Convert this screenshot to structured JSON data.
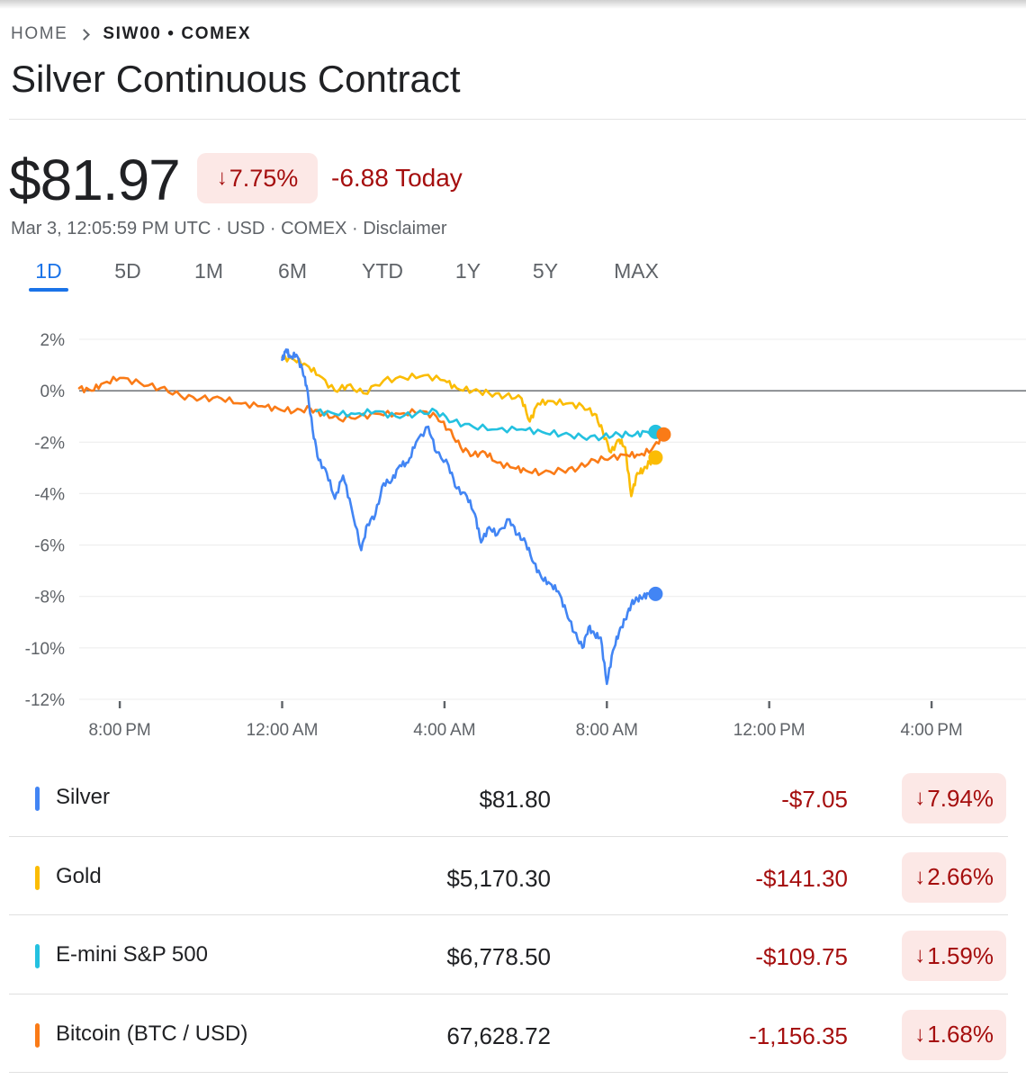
{
  "breadcrumb": {
    "home": "HOME",
    "current": "SIW00 • COMEX"
  },
  "title": "Silver Continuous Contract",
  "quote": {
    "price": "$81.97",
    "change_pct": "7.75%",
    "change_today": "-6.88 Today",
    "meta": "Mar 3, 12:05:59 PM UTC · USD · COMEX · Disclaimer"
  },
  "range_tabs": [
    {
      "label": "1D",
      "active": true
    },
    {
      "label": "5D",
      "active": false
    },
    {
      "label": "1M",
      "active": false
    },
    {
      "label": "6M",
      "active": false
    },
    {
      "label": "YTD",
      "active": false
    },
    {
      "label": "1Y",
      "active": false
    },
    {
      "label": "5Y",
      "active": false
    },
    {
      "label": "MAX",
      "active": false
    }
  ],
  "colors": {
    "silver": "#4285f4",
    "gold": "#fbbc04",
    "sp500": "#24c1e0",
    "bitcoin": "#fa7b17",
    "negative": "#a50e0e",
    "badge_bg": "#fce8e6",
    "active_tab": "#1a73e8"
  },
  "chart_data": {
    "type": "line",
    "ylim": [
      -12,
      2
    ],
    "y_ticks": [
      "2%",
      "0%",
      "-2%",
      "-4%",
      "-6%",
      "-8%",
      "-10%",
      "-12%"
    ],
    "x_ticks": [
      "8:00 PM",
      "12:00 AM",
      "4:00 AM",
      "8:00 AM",
      "12:00 PM",
      "4:00 PM"
    ],
    "x_unit": "hours since 7:00 PM",
    "xlim": [
      0,
      23.5
    ],
    "baseline": 0,
    "series": [
      {
        "name": "Silver",
        "color": "#4285f4",
        "x": [
          5.0,
          5.1,
          5.2,
          5.35,
          5.5,
          5.6,
          5.75,
          5.9,
          6.1,
          6.3,
          6.5,
          6.7,
          6.95,
          7.1,
          7.3,
          7.5,
          7.7,
          7.9,
          8.1,
          8.3,
          8.6,
          8.8,
          9.1,
          9.3,
          9.55,
          9.75,
          9.9,
          10.1,
          10.3,
          10.6,
          10.8,
          11.0,
          11.2,
          11.4,
          11.6,
          11.8,
          12.0,
          12.2,
          12.4,
          12.55,
          12.7,
          12.85,
          13.0,
          13.15,
          13.3,
          13.45,
          13.6,
          13.75,
          13.9,
          14.05,
          14.2
        ],
        "y": [
          1.2,
          1.6,
          1.3,
          1.4,
          0.8,
          0.2,
          -1.5,
          -2.7,
          -3.2,
          -4.2,
          -3.3,
          -4.5,
          -6.2,
          -5.2,
          -4.8,
          -3.6,
          -3.5,
          -2.9,
          -2.8,
          -2.0,
          -1.4,
          -2.4,
          -2.9,
          -3.8,
          -4.1,
          -4.8,
          -5.9,
          -5.3,
          -5.6,
          -5.0,
          -5.6,
          -5.9,
          -6.7,
          -7.3,
          -7.5,
          -7.8,
          -8.6,
          -9.4,
          -10.0,
          -9.2,
          -9.5,
          -9.6,
          -11.4,
          -10.1,
          -9.4,
          -8.9,
          -8.3,
          -8.1,
          -8.0,
          -7.9,
          -7.9
        ]
      },
      {
        "name": "Gold",
        "color": "#fbbc04",
        "x": [
          5.0,
          5.3,
          5.6,
          5.9,
          6.3,
          6.6,
          7.0,
          7.5,
          8.0,
          8.5,
          9.0,
          9.3,
          9.7,
          10.1,
          10.5,
          10.9,
          11.1,
          11.3,
          11.6,
          12.0,
          12.4,
          12.7,
          12.9,
          13.1,
          13.3,
          13.45,
          13.6,
          13.75,
          13.9,
          14.05,
          14.2
        ],
        "y": [
          1.3,
          1.2,
          1.0,
          0.6,
          0.0,
          0.2,
          -0.1,
          0.4,
          0.5,
          0.6,
          0.4,
          0.1,
          0.0,
          -0.1,
          -0.2,
          -0.3,
          -1.2,
          -0.5,
          -0.4,
          -0.5,
          -0.6,
          -0.9,
          -1.6,
          -2.4,
          -1.9,
          -2.2,
          -4.1,
          -3.2,
          -3.1,
          -2.8,
          -2.6
        ]
      },
      {
        "name": "E-mini S&P 500",
        "color": "#24c1e0",
        "x": [
          5.85,
          6.3,
          6.8,
          7.3,
          7.8,
          8.3,
          8.8,
          9.2,
          9.7,
          10.3,
          10.9,
          11.4,
          11.9,
          12.4,
          12.9,
          13.3,
          13.7,
          14.0,
          14.2
        ],
        "y": [
          -0.8,
          -0.9,
          -0.9,
          -0.8,
          -1.0,
          -0.9,
          -0.8,
          -1.2,
          -1.4,
          -1.5,
          -1.5,
          -1.6,
          -1.7,
          -1.8,
          -1.8,
          -1.7,
          -1.7,
          -1.6,
          -1.6
        ]
      },
      {
        "name": "Bitcoin (BTC / USD)",
        "color": "#fa7b17",
        "x": [
          0.0,
          0.3,
          0.6,
          1.0,
          1.5,
          2.0,
          2.5,
          3.0,
          3.5,
          4.0,
          4.5,
          4.9,
          5.3,
          5.7,
          6.0,
          6.4,
          6.9,
          7.4,
          7.9,
          8.4,
          8.8,
          9.1,
          9.4,
          9.7,
          10.0,
          10.3,
          10.7,
          11.0,
          11.4,
          11.9,
          12.3,
          12.7,
          13.1,
          13.5,
          13.8,
          14.1,
          14.4
        ],
        "y": [
          0.1,
          0.0,
          0.3,
          0.5,
          0.3,
          0.1,
          -0.2,
          -0.3,
          -0.3,
          -0.5,
          -0.6,
          -0.7,
          -0.8,
          -0.7,
          -0.9,
          -1.1,
          -1.0,
          -0.9,
          -0.9,
          -0.8,
          -1.0,
          -1.5,
          -2.2,
          -2.5,
          -2.4,
          -2.8,
          -3.0,
          -3.1,
          -3.2,
          -3.1,
          -3.0,
          -2.7,
          -2.6,
          -2.5,
          -2.5,
          -2.3,
          -1.7
        ]
      }
    ]
  },
  "comparison": [
    {
      "name": "Silver",
      "color": "#4285f4",
      "price": "$81.80",
      "change": "-$7.05",
      "pct": "7.94%"
    },
    {
      "name": "Gold",
      "color": "#fbbc04",
      "price": "$5,170.30",
      "change": "-$141.30",
      "pct": "2.66%"
    },
    {
      "name": "E-mini S&P 500",
      "color": "#24c1e0",
      "price": "$6,778.50",
      "change": "-$109.75",
      "pct": "1.59%"
    },
    {
      "name": "Bitcoin (BTC / USD)",
      "color": "#fa7b17",
      "price": "67,628.72",
      "change": "-1,156.35",
      "pct": "1.68%"
    }
  ]
}
